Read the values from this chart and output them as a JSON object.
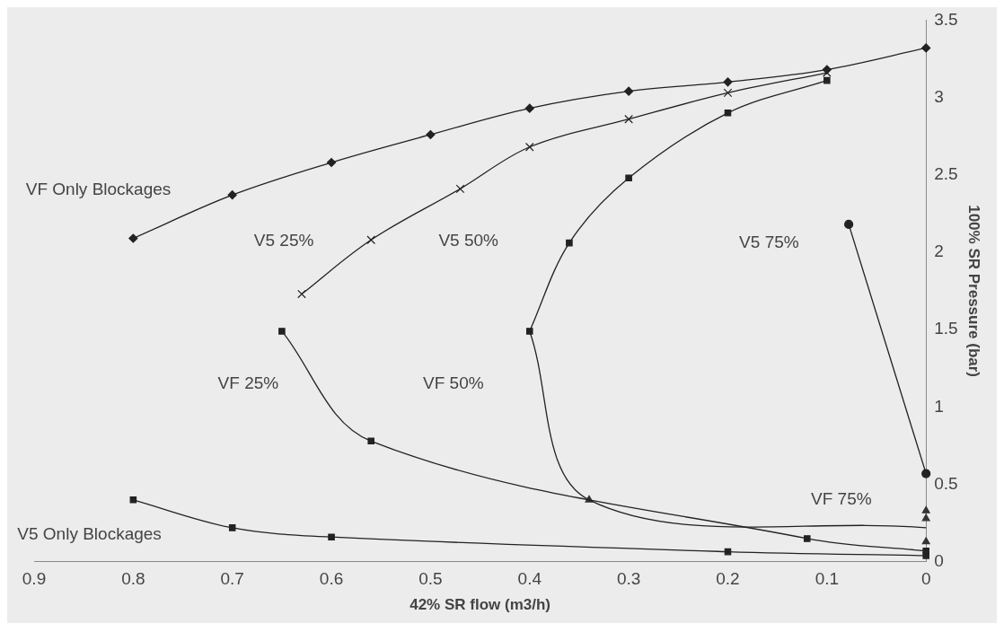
{
  "chart_data": {
    "type": "line",
    "xlabel": "42% SR flow (m3/h)",
    "ylabel": "100% SR Pressure (bar)",
    "xlim": [
      0.9,
      0
    ],
    "xticks": [
      0.9,
      0.8,
      0.7,
      0.6,
      0.5,
      0.4,
      0.3,
      0.2,
      0.1,
      0
    ],
    "ylim": [
      0,
      3.5
    ],
    "yticks": [
      0,
      0.5,
      1,
      1.5,
      2,
      2.5,
      3,
      3.5
    ],
    "grid": false,
    "legend": false,
    "series": [
      {
        "color": "#222222",
        "marker": "diamond",
        "x": [
          0.8,
          0.7,
          0.6,
          0.5,
          0.4,
          0.3,
          0.2,
          0.1,
          0
        ],
        "values": [
          2.09,
          2.37,
          2.58,
          2.76,
          2.93,
          3.04,
          3.1,
          3.18,
          3.32
        ]
      },
      {
        "color": "#222222",
        "marker": "cross",
        "x": [
          0.63,
          0.56,
          0.47,
          0.4,
          0.3,
          0.2,
          0.1
        ],
        "values": [
          1.73,
          2.08,
          2.41,
          2.68,
          2.86,
          3.03,
          3.16
        ]
      },
      {
        "color": "#222222",
        "marker": "square",
        "x": [
          0.4,
          0.36,
          0.3,
          0.2,
          0.1
        ],
        "values": [
          1.49,
          2.06,
          2.48,
          2.9,
          3.11
        ]
      },
      {
        "color": "#222222",
        "marker": "circle",
        "x": [
          0.078,
          0
        ],
        "values": [
          2.18,
          0.57
        ]
      },
      {
        "color": "#222222",
        "marker": "square",
        "x": [
          0.65,
          0.56,
          0.12,
          0
        ],
        "values": [
          1.49,
          0.78,
          0.15,
          0.07
        ]
      },
      {
        "color": "#222222",
        "marker": "none",
        "x": [
          0.4,
          0.34,
          0
        ],
        "values": [
          1.49,
          0.4,
          0.22
        ]
      },
      {
        "color": "#222222",
        "marker": "square",
        "x": [
          0.8,
          0.7,
          0.6,
          0.2,
          0
        ],
        "values": [
          0.4,
          0.22,
          0.16,
          0.065,
          0.04
        ]
      },
      {
        "type": "scatter",
        "color": "#333333",
        "marker": "triangle",
        "x": [
          0.34,
          0,
          0,
          0
        ],
        "values": [
          0.4,
          0.33,
          0.28,
          0.13
        ]
      }
    ],
    "annotations": [
      "VF Only Blockages",
      "V5 25%",
      "V5 50%",
      "V5 75%",
      "VF 25%",
      "VF 50%",
      "VF 75%",
      "V5 Only Blockages"
    ]
  }
}
